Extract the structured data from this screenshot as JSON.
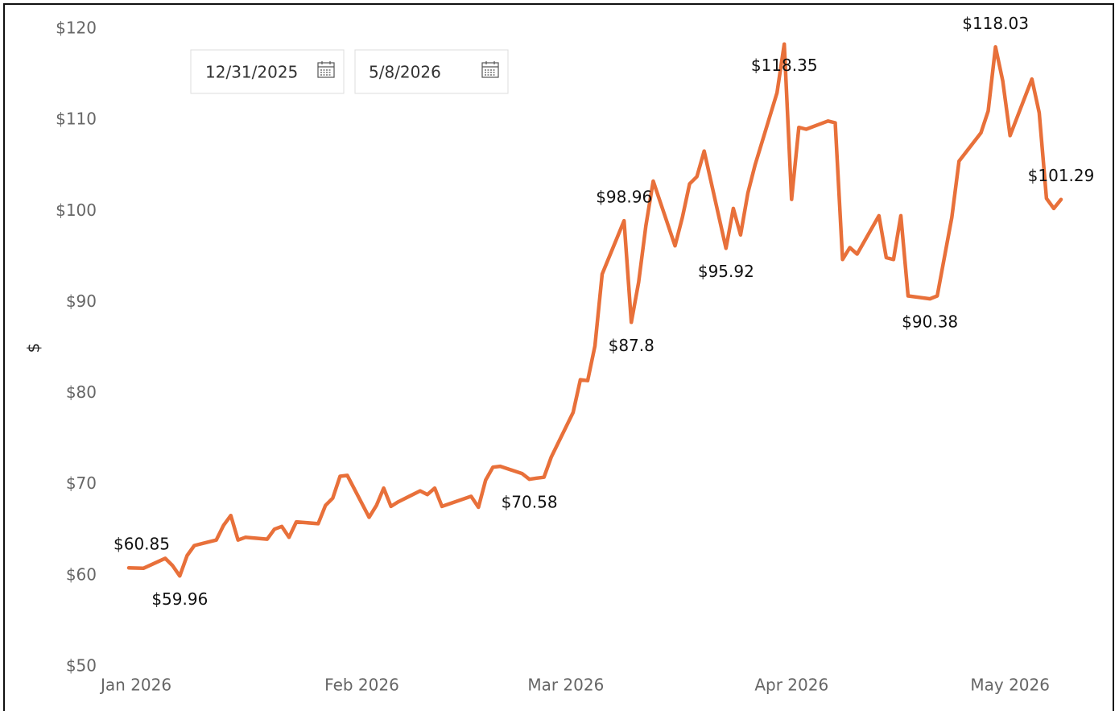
{
  "slicer": {
    "start": "12/31/2025",
    "end": "5/8/2026"
  },
  "chart_data": {
    "type": "line",
    "y_label": "$",
    "color": "#e8703a",
    "x": [
      "2025-12-31",
      "2026-01-02",
      "2026-01-05",
      "2026-01-06",
      "2026-01-07",
      "2026-01-08",
      "2026-01-09",
      "2026-01-12",
      "2026-01-13",
      "2026-01-14",
      "2026-01-15",
      "2026-01-16",
      "2026-01-19",
      "2026-01-20",
      "2026-01-21",
      "2026-01-22",
      "2026-01-23",
      "2026-01-26",
      "2026-01-27",
      "2026-01-28",
      "2026-01-29",
      "2026-01-30",
      "2026-02-02",
      "2026-02-03",
      "2026-02-04",
      "2026-02-05",
      "2026-02-06",
      "2026-02-09",
      "2026-02-10",
      "2026-02-11",
      "2026-02-12",
      "2026-02-16",
      "2026-02-17",
      "2026-02-18",
      "2026-02-19",
      "2026-02-20",
      "2026-02-23",
      "2026-02-24",
      "2026-02-25",
      "2026-02-26",
      "2026-02-27",
      "2026-03-02",
      "2026-03-03",
      "2026-03-04",
      "2026-03-05",
      "2026-03-06",
      "2026-03-09",
      "2026-03-10",
      "2026-03-11",
      "2026-03-12",
      "2026-03-13",
      "2026-03-16",
      "2026-03-17",
      "2026-03-18",
      "2026-03-19",
      "2026-03-20",
      "2026-03-23",
      "2026-03-24",
      "2026-03-25",
      "2026-03-26",
      "2026-03-27",
      "2026-03-30",
      "2026-03-31",
      "2026-04-01",
      "2026-04-02",
      "2026-04-03",
      "2026-04-06",
      "2026-04-07",
      "2026-04-08",
      "2026-04-09",
      "2026-04-10",
      "2026-04-13",
      "2026-04-14",
      "2026-04-15",
      "2026-04-16",
      "2026-04-17",
      "2026-04-20",
      "2026-04-21",
      "2026-04-23",
      "2026-04-24",
      "2026-04-27",
      "2026-04-28",
      "2026-04-29",
      "2026-04-30",
      "2026-05-01",
      "2026-05-04",
      "2026-05-05",
      "2026-05-06",
      "2026-05-07",
      "2026-05-08"
    ],
    "values": [
      60.85,
      60.8,
      61.9,
      61.1,
      59.96,
      62.2,
      63.3,
      63.9,
      65.5,
      66.6,
      63.9,
      64.2,
      64.0,
      65.1,
      65.4,
      64.2,
      65.9,
      65.7,
      67.7,
      68.5,
      70.9,
      71.0,
      66.4,
      67.7,
      69.6,
      67.6,
      68.1,
      69.3,
      68.9,
      69.6,
      67.6,
      68.7,
      67.5,
      70.5,
      71.9,
      72.0,
      71.2,
      70.58,
      70.7,
      70.8,
      73.0,
      77.9,
      81.5,
      81.4,
      85.2,
      93.1,
      98.96,
      87.8,
      92.2,
      98.4,
      103.3,
      96.2,
      99.3,
      103.0,
      103.8,
      106.6,
      95.92,
      100.3,
      97.4,
      102.0,
      105.1,
      113.0,
      118.35,
      101.3,
      109.2,
      109.0,
      109.9,
      109.7,
      94.7,
      96.0,
      95.3,
      99.5,
      94.9,
      94.7,
      99.5,
      90.7,
      90.38,
      90.7,
      99.3,
      105.5,
      108.6,
      111.0,
      118.03,
      114.3,
      108.3,
      114.5,
      110.8,
      101.4,
      100.3,
      101.29
    ],
    "value_labels": [
      "$60.85",
      null,
      null,
      null,
      "$59.96",
      null,
      null,
      null,
      null,
      null,
      null,
      null,
      null,
      null,
      null,
      null,
      null,
      null,
      null,
      null,
      null,
      null,
      null,
      null,
      null,
      null,
      null,
      null,
      null,
      null,
      null,
      null,
      null,
      null,
      null,
      null,
      null,
      "$70.58",
      null,
      null,
      null,
      null,
      null,
      null,
      null,
      null,
      "$98.96",
      "$87.8",
      null,
      null,
      null,
      null,
      null,
      null,
      null,
      null,
      "$95.92",
      null,
      null,
      null,
      null,
      null,
      "$118.35",
      null,
      null,
      null,
      null,
      null,
      null,
      null,
      null,
      null,
      null,
      null,
      null,
      null,
      "$90.38",
      null,
      null,
      null,
      null,
      null,
      "$118.03",
      null,
      null,
      null,
      null,
      null,
      null,
      "$101.29"
    ],
    "xlim": [
      "2025-12-31",
      "2026-05-08"
    ],
    "xticks": [
      {
        "value": "2026-01-01",
        "label": "Jan 2026"
      },
      {
        "value": "2026-02-01",
        "label": "Feb 2026"
      },
      {
        "value": "2026-03-01",
        "label": "Mar 2026"
      },
      {
        "value": "2026-04-01",
        "label": "Apr 2026"
      },
      {
        "value": "2026-05-01",
        "label": "May 2026"
      }
    ],
    "ylim": [
      50,
      120
    ],
    "yticks": [
      {
        "value": 50,
        "label": "$50"
      },
      {
        "value": 60,
        "label": "$60"
      },
      {
        "value": 70,
        "label": "$70"
      },
      {
        "value": 80,
        "label": "$80"
      },
      {
        "value": 90,
        "label": "$90"
      },
      {
        "value": 100,
        "label": "$100"
      },
      {
        "value": 110,
        "label": "$110"
      },
      {
        "value": 120,
        "label": "$120"
      }
    ],
    "grid": false
  }
}
